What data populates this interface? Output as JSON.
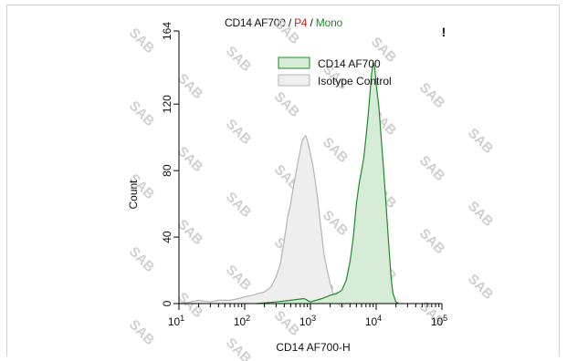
{
  "chart_data": {
    "type": "area",
    "title": {
      "main": "CD14 AF700",
      "sep": " / ",
      "gate": "P4",
      "population": "Mono"
    },
    "corner_mark": "!",
    "xlabel": "CD14 AF700-H",
    "ylabel": "Count",
    "x_scale": "log",
    "xlim": [
      10,
      100000
    ],
    "ylim": [
      0,
      164
    ],
    "x_ticks": [
      {
        "base": "10",
        "exp": "1",
        "value": 10
      },
      {
        "base": "10",
        "exp": "2",
        "value": 100
      },
      {
        "base": "10",
        "exp": "3",
        "value": 1000
      },
      {
        "base": "10",
        "exp": "4",
        "value": 10000
      },
      {
        "base": "10",
        "exp": "5",
        "value": 100000
      }
    ],
    "y_ticks": [
      "0",
      "40",
      "80",
      "120",
      "164"
    ],
    "y_tick_values": [
      0,
      40,
      80,
      120,
      164
    ],
    "legend_position": "top-right",
    "grid": false,
    "watermark": "SAB",
    "series": [
      {
        "name": "CD14 AF700",
        "color": "#1f8a2a",
        "fill": "#d6ecd6",
        "points": [
          [
            150,
            0
          ],
          [
            300,
            1
          ],
          [
            500,
            2
          ],
          [
            800,
            3
          ],
          [
            1000,
            1
          ],
          [
            1500,
            3
          ],
          [
            2000,
            5
          ],
          [
            2500,
            6
          ],
          [
            3000,
            8
          ],
          [
            3500,
            14
          ],
          [
            4000,
            25
          ],
          [
            4500,
            40
          ],
          [
            5000,
            60
          ],
          [
            5500,
            72
          ],
          [
            6000,
            80
          ],
          [
            6500,
            88
          ],
          [
            7000,
            100
          ],
          [
            7500,
            112
          ],
          [
            8000,
            125
          ],
          [
            8500,
            138
          ],
          [
            9000,
            145
          ],
          [
            9500,
            142
          ],
          [
            10000,
            132
          ],
          [
            11000,
            118
          ],
          [
            12000,
            98
          ],
          [
            13000,
            80
          ],
          [
            14000,
            62
          ],
          [
            15000,
            44
          ],
          [
            16000,
            28
          ],
          [
            17000,
            14
          ],
          [
            18000,
            6
          ],
          [
            20000,
            1
          ],
          [
            22000,
            0
          ]
        ]
      },
      {
        "name": "Isotype Control",
        "color": "#b4b4b4",
        "fill": "#eeeeee",
        "points": [
          [
            10,
            0
          ],
          [
            15,
            1
          ],
          [
            20,
            2
          ],
          [
            30,
            1
          ],
          [
            40,
            2
          ],
          [
            60,
            2
          ],
          [
            80,
            3
          ],
          [
            100,
            4
          ],
          [
            130,
            5
          ],
          [
            160,
            6
          ],
          [
            200,
            7
          ],
          [
            250,
            10
          ],
          [
            300,
            16
          ],
          [
            350,
            24
          ],
          [
            400,
            38
          ],
          [
            450,
            52
          ],
          [
            500,
            60
          ],
          [
            550,
            70
          ],
          [
            600,
            78
          ],
          [
            650,
            86
          ],
          [
            700,
            92
          ],
          [
            750,
            98
          ],
          [
            800,
            100
          ],
          [
            850,
            101
          ],
          [
            900,
            98
          ],
          [
            950,
            94
          ],
          [
            1000,
            90
          ],
          [
            1100,
            82
          ],
          [
            1200,
            72
          ],
          [
            1300,
            62
          ],
          [
            1400,
            50
          ],
          [
            1500,
            40
          ],
          [
            1600,
            30
          ],
          [
            1800,
            20
          ],
          [
            2000,
            12
          ],
          [
            2200,
            6
          ],
          [
            2500,
            3
          ],
          [
            3000,
            1
          ],
          [
            3500,
            0
          ]
        ]
      }
    ]
  }
}
